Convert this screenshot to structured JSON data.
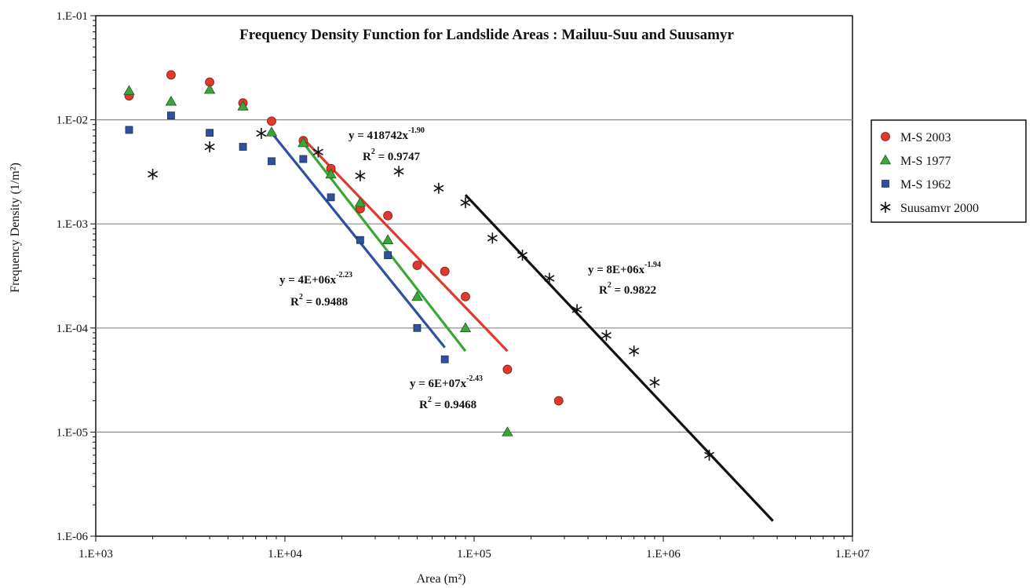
{
  "chart_data": {
    "type": "scatter",
    "title": "Frequency Density Function for Landslide Areas : Mailuu-Suu and Suusamyr",
    "xlabel": "Area (m²)",
    "ylabel": "Frequency Density (1/m²)",
    "x_scale": "log",
    "y_scale": "log",
    "xlim": [
      1000,
      10000000
    ],
    "ylim": [
      1e-06,
      0.1
    ],
    "x_ticks": [
      1000,
      10000,
      100000,
      1000000,
      10000000
    ],
    "x_tick_labels": [
      "1.E+03",
      "1.E+04",
      "1.E+05",
      "1.E+06",
      "1.E+07"
    ],
    "y_ticks": [
      0.1,
      0.01,
      0.001,
      0.0001,
      1e-05,
      1e-06
    ],
    "y_tick_labels": [
      "1.E-01",
      "1.E-02",
      "1.E-03",
      "1.E-04",
      "1.E-05",
      "1.E-06"
    ],
    "grid": "horizontal major",
    "legend_position": "right",
    "series": [
      {
        "name": "M-S 2003",
        "marker": "circle",
        "color": "#e03a2f",
        "x": [
          1500,
          2500,
          4000,
          6000,
          8500,
          12500,
          17500,
          25000,
          35000,
          50000,
          70000,
          90000,
          150000,
          280000
        ],
        "y": [
          0.017,
          0.027,
          0.023,
          0.0145,
          0.0097,
          0.0063,
          0.0034,
          0.0014,
          0.0012,
          0.0004,
          0.00035,
          0.0002,
          4e-05,
          2e-05
        ],
        "fit": {
          "x": [
            12500,
            150000
          ],
          "y": [
            0.0066,
            6e-05
          ],
          "color": "#e03a2f"
        }
      },
      {
        "name": "M-S 1977",
        "marker": "triangle",
        "color": "#3aa63a",
        "x": [
          1500,
          2500,
          4000,
          6000,
          8500,
          12500,
          17500,
          25000,
          35000,
          50000,
          90000,
          150000
        ],
        "y": [
          0.019,
          0.015,
          0.0195,
          0.0135,
          0.0076,
          0.006,
          0.003,
          0.0016,
          0.0007,
          0.0002,
          0.0001,
          1e-05
        ],
        "fit": {
          "x": [
            12500,
            90000
          ],
          "y": [
            0.006,
            6e-05
          ],
          "color": "#3aa63a"
        }
      },
      {
        "name": "M-S 1962",
        "marker": "square",
        "color": "#2f4f9f",
        "x": [
          1500,
          2500,
          4000,
          6000,
          8500,
          12500,
          17500,
          25000,
          35000,
          50000,
          70000
        ],
        "y": [
          0.008,
          0.011,
          0.0075,
          0.0055,
          0.004,
          0.0042,
          0.0018,
          0.0007,
          0.0005,
          0.0001,
          5e-05
        ],
        "fit": {
          "x": [
            8500,
            70000
          ],
          "y": [
            0.0075,
            6.5e-05
          ],
          "color": "#2f4f9f"
        }
      },
      {
        "name": "Suusamvr 2000",
        "marker": "asterisk",
        "color": "#111111",
        "x": [
          2000,
          4000,
          7500,
          15000,
          25000,
          40000,
          65000,
          90000,
          125000,
          180000,
          250000,
          350000,
          500000,
          700000,
          900000,
          1750000
        ],
        "y": [
          0.003,
          0.0055,
          0.0074,
          0.0049,
          0.0029,
          0.0032,
          0.0022,
          0.0016,
          0.00073,
          0.0005,
          0.0003,
          0.00015,
          8.5e-05,
          6e-05,
          3e-05,
          6e-06
        ],
        "fit": {
          "x": [
            90000,
            3800000
          ],
          "y": [
            0.0019,
            1.4e-06
          ],
          "color": "#111111"
        }
      }
    ],
    "annotations": [
      {
        "base": "y = 418742x",
        "exp": "-1.90",
        "r2_label": "R",
        "r2_exp": "2",
        "r2_value": " = 0.9747"
      },
      {
        "base": "y = 4E+06x",
        "exp": "-2.23",
        "r2_label": "R",
        "r2_exp": "2",
        "r2_value": " = 0.9488"
      },
      {
        "base": "y = 6E+07x",
        "exp": "-2.43",
        "r2_label": "R",
        "r2_exp": "2",
        "r2_value": " = 0.9468"
      },
      {
        "base": "y = 8E+06x",
        "exp": "-1.94",
        "r2_label": "R",
        "r2_exp": "2",
        "r2_value": " = 0.9822"
      }
    ]
  }
}
